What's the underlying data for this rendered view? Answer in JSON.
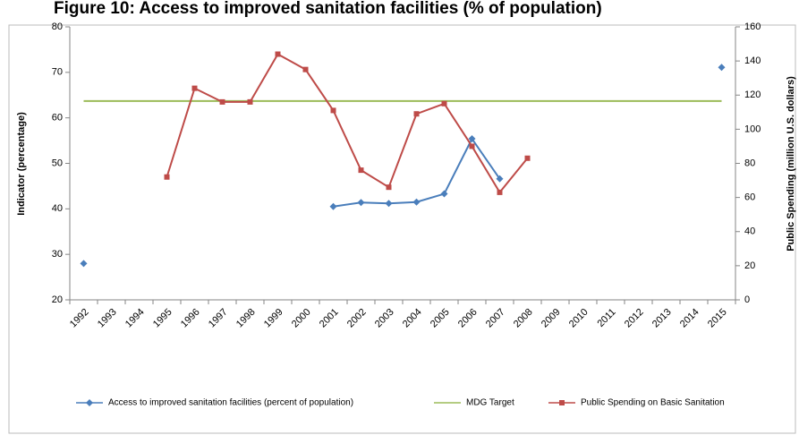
{
  "chart_data": {
    "type": "line",
    "title": "Figure 10: Access to improved sanitation facilities (% of population)",
    "y_label": "Indicator (percentage)",
    "y2_label": "Public Spending (million U.S. dollars)",
    "categories": [
      "1992",
      "1993",
      "1994",
      "1995",
      "1996",
      "1997",
      "1998",
      "1999",
      "2000",
      "2001",
      "2002",
      "2003",
      "2004",
      "2005",
      "2006",
      "2007",
      "2008",
      "2009",
      "2010",
      "2011",
      "2012",
      "2013",
      "2014",
      "2015"
    ],
    "ylim": [
      20,
      80
    ],
    "yticks": [
      20,
      30,
      40,
      50,
      60,
      70,
      80
    ],
    "y2lim": [
      0,
      160
    ],
    "y2ticks": [
      0,
      20,
      40,
      60,
      80,
      100,
      120,
      140,
      160
    ],
    "legend": "bottom",
    "series": [
      {
        "name": "Access to improved sanitation facilities (percent of population)",
        "color": "#4a7ebb",
        "marker": "diamond",
        "values": [
          28,
          null,
          null,
          null,
          null,
          null,
          null,
          null,
          null,
          40.5,
          41.4,
          41.2,
          41.5,
          43.3,
          55.4,
          46.6,
          null,
          null,
          null,
          null,
          null,
          null,
          null,
          71.1
        ]
      },
      {
        "name": "MDG Target",
        "color": "#9bbb59",
        "marker": "none",
        "values": [
          63.7,
          63.7,
          63.7,
          63.7,
          63.7,
          63.7,
          63.7,
          63.7,
          63.7,
          63.7,
          63.7,
          63.7,
          63.7,
          63.7,
          63.7,
          63.7,
          63.7,
          63.7,
          63.7,
          63.7,
          63.7,
          63.7,
          63.7,
          63.7
        ]
      },
      {
        "name": "Public Spending on Basic Sanitation",
        "color": "#be4b48",
        "marker": "square",
        "axis": "y2",
        "values": [
          null,
          null,
          null,
          72,
          124,
          116,
          116,
          144,
          135,
          111,
          76,
          66,
          109,
          115,
          90,
          63,
          83,
          null,
          null,
          null,
          null,
          null,
          null,
          null
        ]
      }
    ]
  }
}
